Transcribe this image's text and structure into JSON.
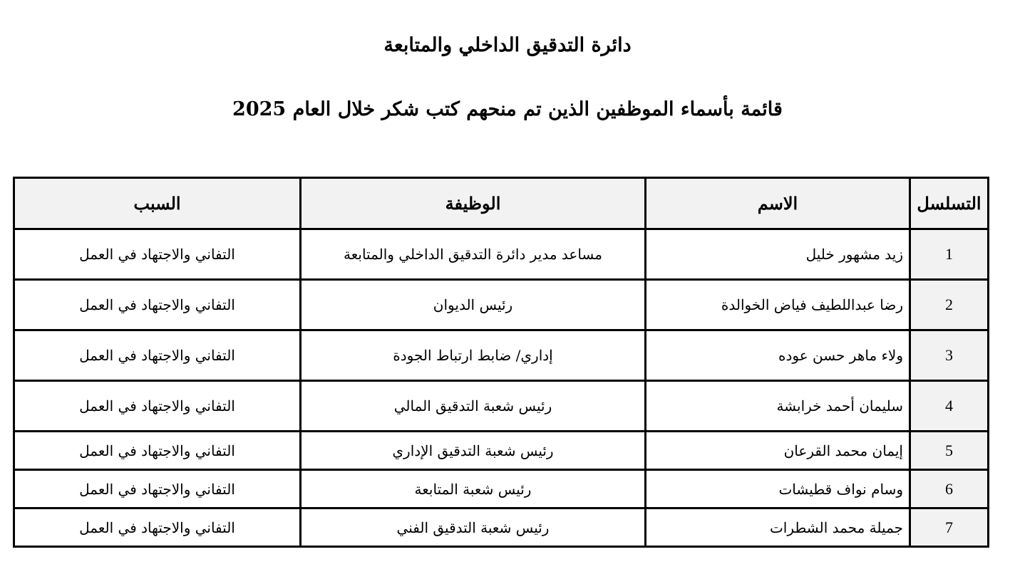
{
  "document": {
    "title": "دائرة التدقيق الداخلي والمتابعة",
    "subtitle": "قائمة بأسماء الموظفين الذين تم منحهم كتب شكر خلال العام 2025"
  },
  "table": {
    "headers": {
      "seq": "التسلسل",
      "name": "الاسم",
      "job": "الوظيفة",
      "reason": "السبب"
    },
    "rows": [
      {
        "seq": "1",
        "name": "زيد مشهور خليل",
        "job": "مساعد مدير دائرة التدقيق الداخلي والمتابعة",
        "reason": "التفاني والاجتهاد في العمل"
      },
      {
        "seq": "2",
        "name": "رضا عبداللطيف فياض الخوالدة",
        "job": "رئيس الديوان",
        "reason": "التفاني والاجتهاد في العمل"
      },
      {
        "seq": "3",
        "name": "ولاء ماهر حسن عوده",
        "job": "إداري/ ضابط ارتباط الجودة",
        "reason": "التفاني والاجتهاد في العمل"
      },
      {
        "seq": "4",
        "name": "سليمان أحمد خرابشة",
        "job": "رئيس شعبة التدقيق المالي",
        "reason": "التفاني والاجتهاد في العمل"
      },
      {
        "seq": "5",
        "name": "إيمان محمد القرعان",
        "job": "رئيس شعبة التدقيق الإداري",
        "reason": "التفاني والاجتهاد في العمل"
      },
      {
        "seq": "6",
        "name": "وسام نواف قطيشات",
        "job": "رئيس شعبة المتابعة",
        "reason": "التفاني والاجتهاد في العمل"
      },
      {
        "seq": "7",
        "name": "جميلة محمد الشطرات",
        "job": "رئيس شعبة التدقيق الفني",
        "reason": "التفاني والاجتهاد في العمل"
      }
    ]
  }
}
